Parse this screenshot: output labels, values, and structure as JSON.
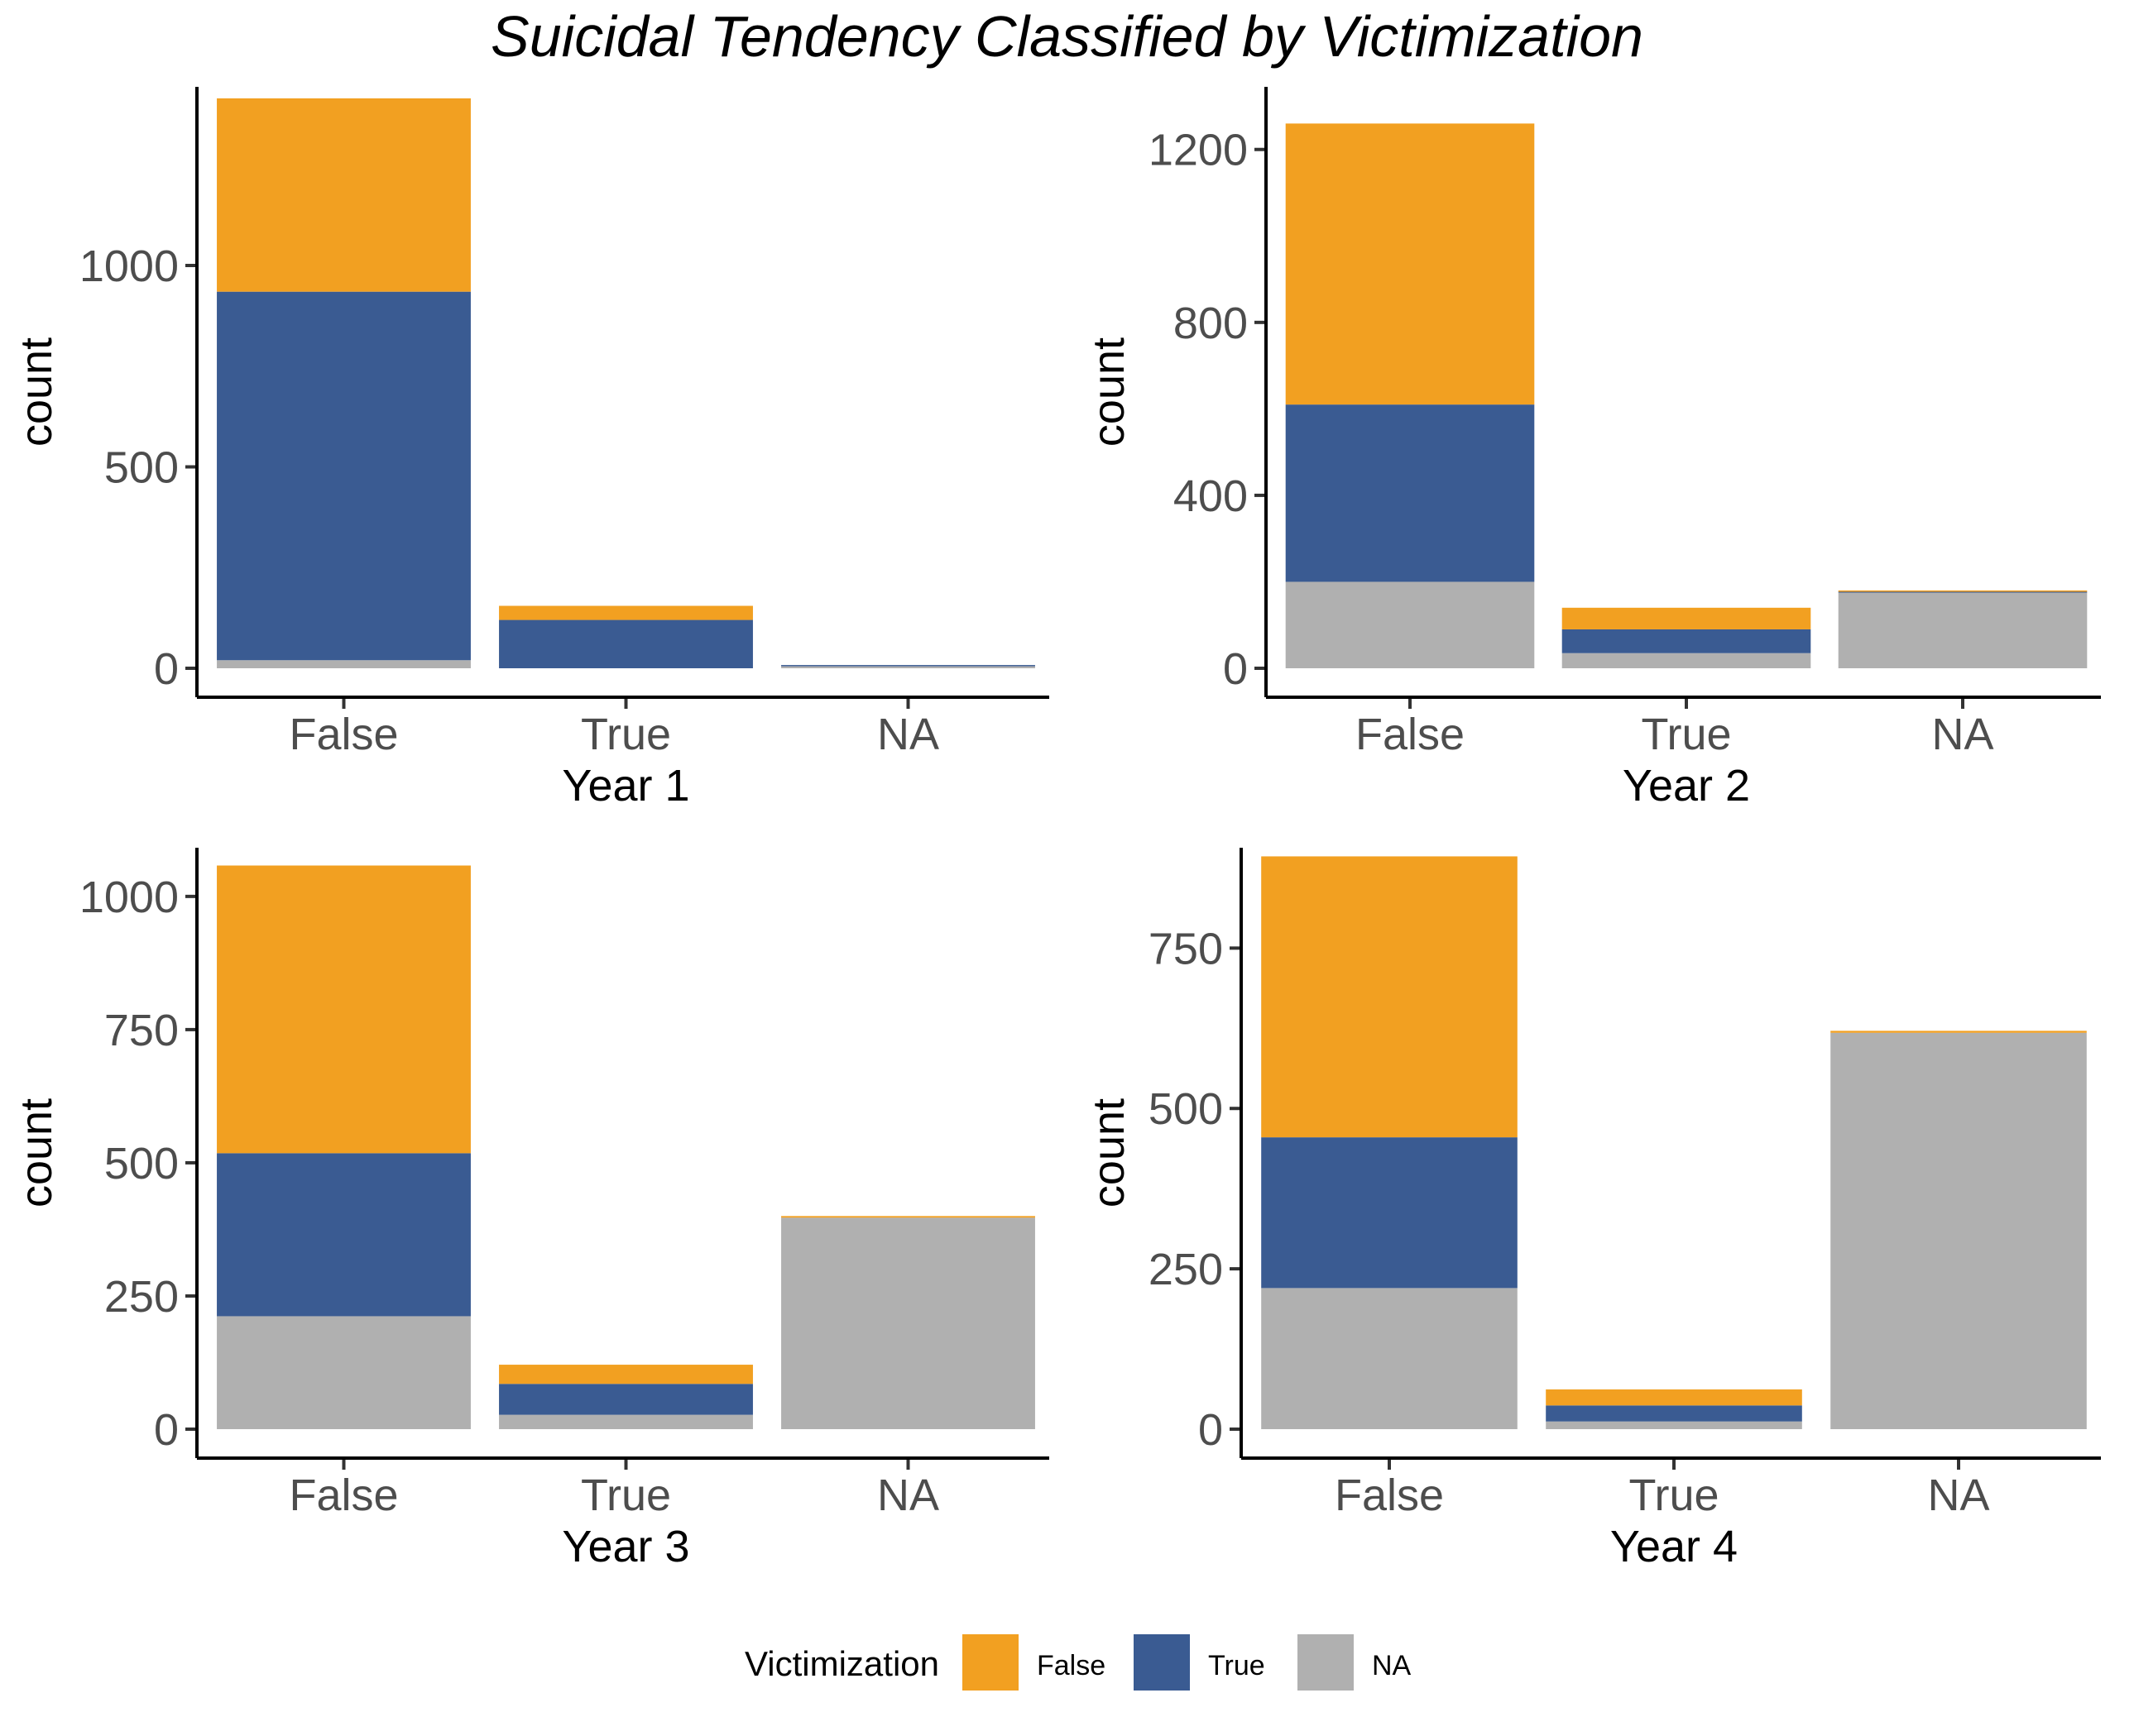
{
  "title": "Suicidal Tendency Classified by Victimization",
  "legend": {
    "title": "Victimization",
    "position": "bottom",
    "entries": [
      {
        "label": "False",
        "color": "#F2A021"
      },
      {
        "label": "True",
        "color": "#3A5B92"
      },
      {
        "label": "NA",
        "color": "#B0B0B0"
      }
    ]
  },
  "chart_data": [
    {
      "type": "bar",
      "stacked": true,
      "xlabel": "Year 1",
      "ylabel": "count",
      "categories": [
        "False",
        "True",
        "NA"
      ],
      "ylim": [
        0,
        1460
      ],
      "yticks": [
        0,
        500,
        1000
      ],
      "series": [
        {
          "name": "NA",
          "color": "#B0B0B0",
          "values": [
            20,
            0,
            5
          ]
        },
        {
          "name": "True",
          "color": "#3A5B92",
          "values": [
            915,
            120,
            3
          ]
        },
        {
          "name": "False",
          "color": "#F2A021",
          "values": [
            480,
            35,
            0
          ]
        }
      ]
    },
    {
      "type": "bar",
      "stacked": true,
      "xlabel": "Year 2",
      "ylabel": "count",
      "categories": [
        "False",
        "True",
        "NA"
      ],
      "ylim": [
        0,
        1320
      ],
      "yticks": [
        0,
        400,
        800,
        1200
      ],
      "series": [
        {
          "name": "NA",
          "color": "#B0B0B0",
          "values": [
            200,
            35,
            175
          ]
        },
        {
          "name": "True",
          "color": "#3A5B92",
          "values": [
            410,
            55,
            2
          ]
        },
        {
          "name": "False",
          "color": "#F2A021",
          "values": [
            650,
            50,
            3
          ]
        }
      ]
    },
    {
      "type": "bar",
      "stacked": true,
      "xlabel": "Year 3",
      "ylabel": "count",
      "categories": [
        "False",
        "True",
        "NA"
      ],
      "ylim": [
        0,
        1110
      ],
      "yticks": [
        0,
        250,
        500,
        750,
        1000
      ],
      "series": [
        {
          "name": "NA",
          "color": "#B0B0B0",
          "values": [
            212,
            27,
            397
          ]
        },
        {
          "name": "True",
          "color": "#3A5B92",
          "values": [
            306,
            58,
            0
          ]
        },
        {
          "name": "False",
          "color": "#F2A021",
          "values": [
            540,
            36,
            3
          ]
        }
      ]
    },
    {
      "type": "bar",
      "stacked": true,
      "xlabel": "Year 4",
      "ylabel": "count",
      "categories": [
        "False",
        "True",
        "NA"
      ],
      "ylim": [
        0,
        940
      ],
      "yticks": [
        0,
        250,
        500,
        750
      ],
      "series": [
        {
          "name": "NA",
          "color": "#B0B0B0",
          "values": [
            220,
            12,
            618
          ]
        },
        {
          "name": "True",
          "color": "#3A5B92",
          "values": [
            235,
            25,
            0
          ]
        },
        {
          "name": "False",
          "color": "#F2A021",
          "values": [
            438,
            25,
            3
          ]
        }
      ]
    }
  ]
}
